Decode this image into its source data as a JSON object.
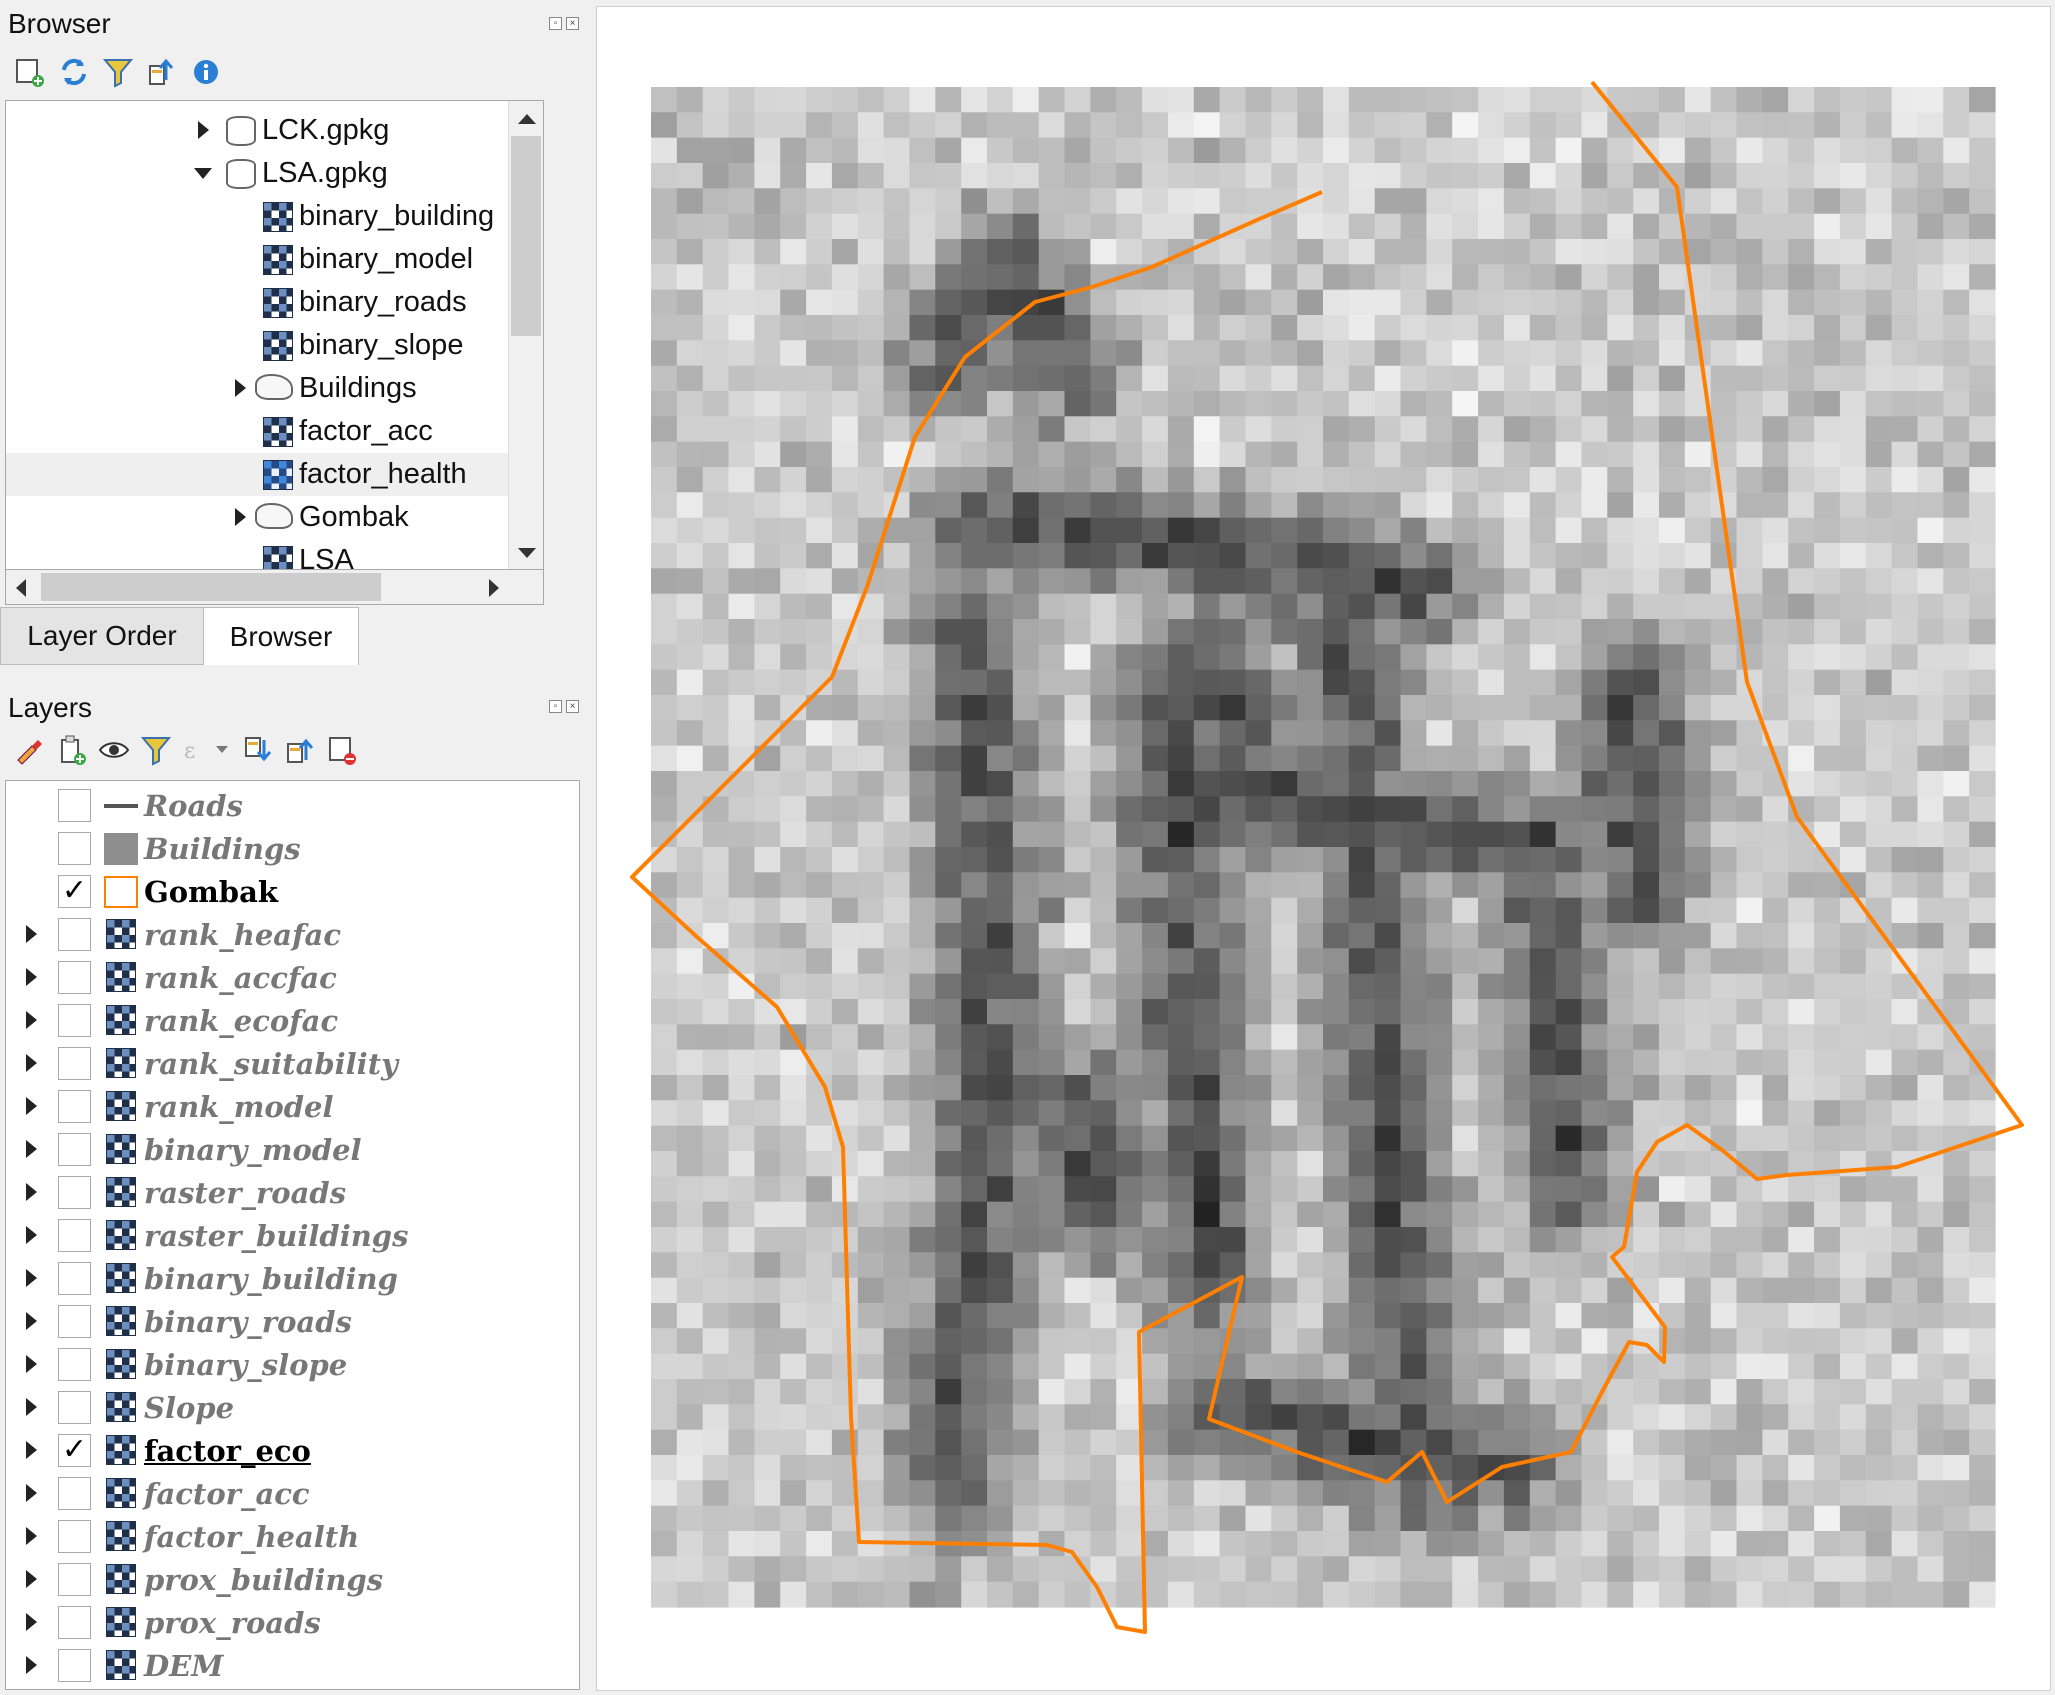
{
  "browser_panel": {
    "title": "Browser",
    "toolbar_icons": [
      "add-layer-icon",
      "refresh-icon",
      "filter-icon",
      "collapse-all-icon",
      "info-icon"
    ],
    "tree": [
      {
        "label": "LCK.gpkg",
        "icon": "geopackage-icon",
        "indent": 0,
        "expander": "collapsed"
      },
      {
        "label": "LSA.gpkg",
        "icon": "geopackage-icon",
        "indent": 0,
        "expander": "expanded"
      },
      {
        "label": "binary_building",
        "icon": "raster-icon",
        "indent": 1,
        "expander": "none"
      },
      {
        "label": "binary_model",
        "icon": "raster-icon",
        "indent": 1,
        "expander": "none"
      },
      {
        "label": "binary_roads",
        "icon": "raster-icon",
        "indent": 1,
        "expander": "none"
      },
      {
        "label": "binary_slope",
        "icon": "raster-icon",
        "indent": 1,
        "expander": "none"
      },
      {
        "label": "Buildings",
        "icon": "polygon-layer-icon",
        "indent": 1,
        "expander": "collapsed"
      },
      {
        "label": "factor_acc",
        "icon": "raster-icon",
        "indent": 1,
        "expander": "none"
      },
      {
        "label": "factor_health",
        "icon": "raster-icon",
        "indent": 1,
        "expander": "none",
        "selected": true
      },
      {
        "label": "Gombak",
        "icon": "polygon-layer-icon",
        "indent": 1,
        "expander": "collapsed"
      },
      {
        "label": "LSA",
        "icon": "raster-icon",
        "indent": 1,
        "expander": "none"
      }
    ]
  },
  "tabs": [
    {
      "label": "Layer Order",
      "active": false
    },
    {
      "label": "Browser",
      "active": true
    }
  ],
  "layers_panel": {
    "title": "Layers",
    "toolbar_icons": [
      "style-manager-icon",
      "add-group-icon",
      "visibility-icon",
      "filter-legend-icon",
      "expression-filter-icon",
      "expand-all-icon",
      "collapse-all-icon",
      "remove-layer-icon"
    ],
    "layers": [
      {
        "label": "Roads",
        "checked": false,
        "symbol": "line",
        "expander": false
      },
      {
        "label": "Buildings",
        "checked": false,
        "symbol": "fill",
        "expander": false
      },
      {
        "label": "Gombak",
        "checked": true,
        "symbol": "outline",
        "expander": false
      },
      {
        "label": "rank_heafac",
        "checked": false,
        "symbol": "raster",
        "expander": true
      },
      {
        "label": "rank_accfac",
        "checked": false,
        "symbol": "raster",
        "expander": true
      },
      {
        "label": "rank_ecofac",
        "checked": false,
        "symbol": "raster",
        "expander": true
      },
      {
        "label": "rank_suitability",
        "checked": false,
        "symbol": "raster",
        "expander": true
      },
      {
        "label": "rank_model",
        "checked": false,
        "symbol": "raster",
        "expander": true
      },
      {
        "label": "binary_model",
        "checked": false,
        "symbol": "raster",
        "expander": true
      },
      {
        "label": "raster_roads",
        "checked": false,
        "symbol": "raster",
        "expander": true
      },
      {
        "label": "raster_buildings",
        "checked": false,
        "symbol": "raster",
        "expander": true
      },
      {
        "label": "binary_building",
        "checked": false,
        "symbol": "raster",
        "expander": true
      },
      {
        "label": "binary_roads",
        "checked": false,
        "symbol": "raster",
        "expander": true
      },
      {
        "label": "binary_slope",
        "checked": false,
        "symbol": "raster",
        "expander": true
      },
      {
        "label": "Slope",
        "checked": false,
        "symbol": "raster",
        "expander": true
      },
      {
        "label": "factor_eco",
        "checked": true,
        "symbol": "raster",
        "expander": true,
        "current": true
      },
      {
        "label": "factor_acc",
        "checked": false,
        "symbol": "raster",
        "expander": true
      },
      {
        "label": "factor_health",
        "checked": false,
        "symbol": "raster",
        "expander": true
      },
      {
        "label": "prox_buildings",
        "checked": false,
        "symbol": "raster",
        "expander": true
      },
      {
        "label": "prox_roads",
        "checked": false,
        "symbol": "raster",
        "expander": true
      },
      {
        "label": "DEM",
        "checked": false,
        "symbol": "raster",
        "expander": true
      }
    ]
  },
  "map": {
    "visible_raster": "factor_eco",
    "boundary_layer": "Gombak",
    "boundary_color": "#ff7f00"
  }
}
